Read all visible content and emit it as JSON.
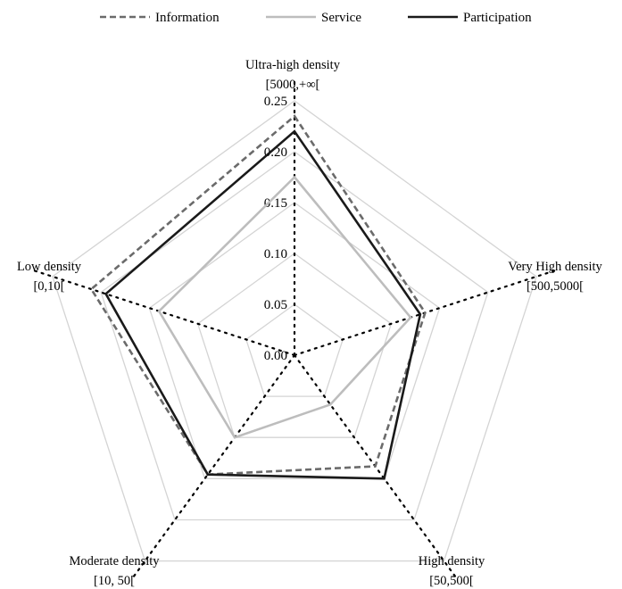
{
  "chart_data": {
    "type": "radar",
    "axes": [
      {
        "line1": "Ultra-high density",
        "line2": "[5000,+∞["
      },
      {
        "line1": "Very High density",
        "line2": "[500,5000["
      },
      {
        "line1": "High density",
        "line2": "[50,500["
      },
      {
        "line1": "Moderate density",
        "line2": "[10, 50["
      },
      {
        "line1": "Low density",
        "line2": "[0,10["
      }
    ],
    "range": [
      0,
      0.25
    ],
    "ticks": [
      "0.00",
      "0.05",
      "0.10",
      "0.15",
      "0.20",
      "0.25"
    ],
    "grid": true,
    "legend_position": "top",
    "series": [
      {
        "name": "Information",
        "values": [
          0.235,
          0.135,
          0.135,
          0.145,
          0.21
        ],
        "color": "#6b6b6b",
        "style": "dashed"
      },
      {
        "name": "Service",
        "values": [
          0.175,
          0.12,
          0.06,
          0.1,
          0.14
        ],
        "color": "#bdbdbd",
        "style": "solid"
      },
      {
        "name": "Participation",
        "values": [
          0.22,
          0.13,
          0.15,
          0.145,
          0.195
        ],
        "color": "#1a1a1a",
        "style": "solid"
      }
    ]
  }
}
